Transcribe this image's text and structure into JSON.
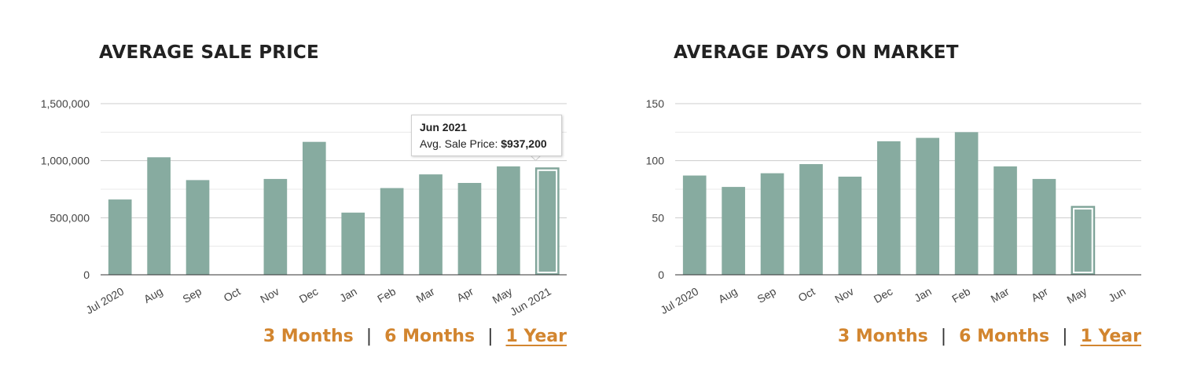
{
  "colors": {
    "bar": "#87aba0",
    "highlight_stroke": "#ffffff",
    "gridline": "#cccccc",
    "minor_gridline": "#e8e8e8",
    "axis": "#333333",
    "accent": "#d2852f"
  },
  "range_nav": {
    "three_months": "3 Months",
    "separator": "|",
    "six_months": "6 Months",
    "one_year": "1 Year",
    "active": "1 Year"
  },
  "tooltip": {
    "title": "Jun 2021",
    "label": "Avg. Sale Price:",
    "value": "$937,200"
  },
  "chart_data": [
    {
      "type": "bar",
      "title": "AVERAGE SALE PRICE",
      "categories": [
        "Jul 2020",
        "Aug",
        "Sep",
        "Oct",
        "Nov",
        "Dec",
        "Jan",
        "Feb",
        "Mar",
        "Apr",
        "May",
        "Jun 2021"
      ],
      "values": [
        660000,
        1030000,
        830000,
        0,
        840000,
        1165000,
        545000,
        760000,
        880000,
        805000,
        950000,
        937200
      ],
      "ylim": [
        0,
        1500000
      ],
      "yticks": [
        0,
        500000,
        1000000,
        1500000
      ],
      "ytick_labels": [
        "0",
        "500,000",
        "1,000,000",
        "1,500,000"
      ],
      "highlighted": "Jun 2021",
      "grid": true
    },
    {
      "type": "bar",
      "title": "AVERAGE DAYS ON MARKET",
      "categories": [
        "Jul 2020",
        "Aug",
        "Sep",
        "Oct",
        "Nov",
        "Dec",
        "Jan",
        "Feb",
        "Mar",
        "Apr",
        "May",
        "Jun"
      ],
      "values": [
        87,
        77,
        89,
        97,
        86,
        117,
        120,
        125,
        95,
        84,
        60,
        0
      ],
      "ylim": [
        0,
        150
      ],
      "yticks": [
        0,
        50,
        100,
        150
      ],
      "ytick_labels": [
        "0",
        "50",
        "100",
        "150"
      ],
      "highlighted": "May",
      "grid": true
    }
  ]
}
